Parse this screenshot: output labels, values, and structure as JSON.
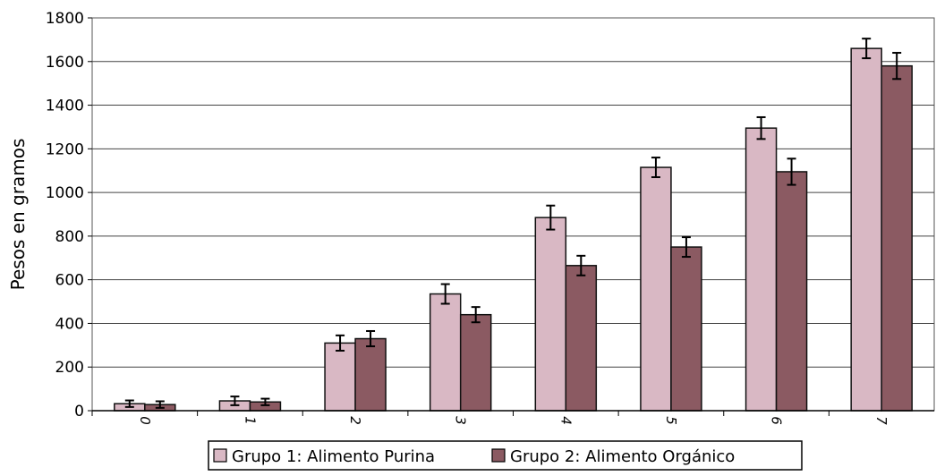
{
  "chart_data": {
    "type": "bar",
    "title": "",
    "xlabel": "",
    "ylabel": "Pesos en gramos",
    "ylim": [
      0,
      1800
    ],
    "yticks": [
      0,
      200,
      400,
      600,
      800,
      1000,
      1200,
      1400,
      1600,
      1800
    ],
    "grid": true,
    "legend_position": "bottom",
    "categories": [
      "0",
      "1",
      "2",
      "3",
      "4",
      "5",
      "6",
      "7"
    ],
    "series": [
      {
        "name": "Grupo 1: Alimento Purina",
        "color": "#d9b8c4",
        "values": [
          32,
          45,
          310,
          535,
          885,
          1115,
          1295,
          1660
        ],
        "errors": [
          15,
          20,
          35,
          45,
          55,
          45,
          50,
          45
        ]
      },
      {
        "name": "Grupo 2: Alimento Orgánico",
        "color": "#8b5a62",
        "values": [
          28,
          40,
          330,
          440,
          665,
          750,
          1095,
          1580
        ],
        "errors": [
          15,
          15,
          35,
          35,
          45,
          45,
          60,
          60
        ]
      }
    ]
  }
}
